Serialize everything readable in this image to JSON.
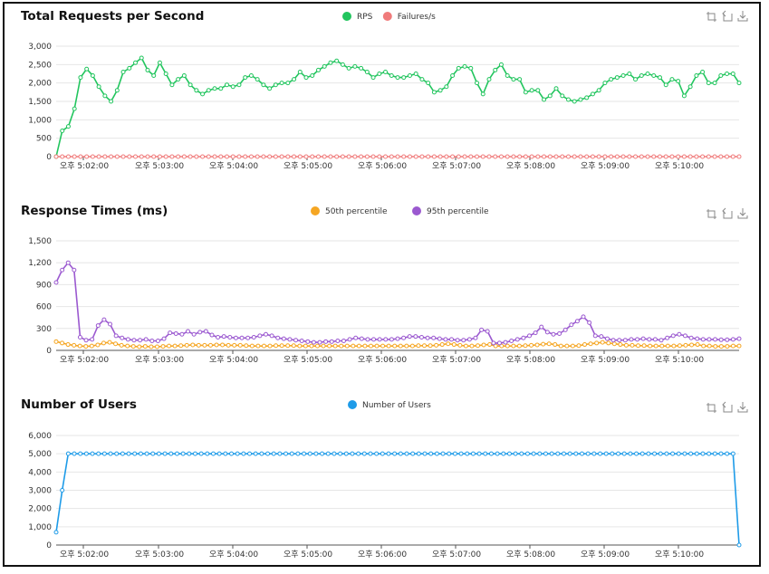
{
  "toolbox": {
    "icons": [
      "zoom-icon",
      "zoom-reset-icon",
      "download-icon"
    ]
  },
  "chart_data": [
    {
      "type": "line",
      "title": "Total Requests per Second",
      "colors": {
        "RPS": "#22c55e",
        "Failures/s": "#f07b7b"
      },
      "ylim": [
        0,
        3000
      ],
      "yticks": [
        "3,000",
        "2,500",
        "2,000",
        "1,500",
        "1,000",
        "500",
        "0"
      ],
      "xticks": [
        "오후 5:02:00",
        "오후 5:03:00",
        "오후 5:04:00",
        "오후 5:05:00",
        "오후 5:06:00",
        "오후 5:07:00",
        "오후 5:08:00",
        "오후 5:09:00",
        "오후 5:10:00"
      ],
      "grid": true,
      "legend_position": "top-center",
      "series": [
        {
          "name": "RPS",
          "values": [
            0,
            700,
            820,
            1300,
            2150,
            2380,
            2200,
            1900,
            1650,
            1500,
            1800,
            2300,
            2400,
            2550,
            2680,
            2350,
            2200,
            2550,
            2250,
            1950,
            2100,
            2200,
            1950,
            1800,
            1700,
            1800,
            1850,
            1850,
            1950,
            1900,
            1950,
            2150,
            2200,
            2100,
            1950,
            1850,
            1950,
            2000,
            2000,
            2100,
            2300,
            2150,
            2200,
            2350,
            2450,
            2550,
            2600,
            2500,
            2400,
            2450,
            2400,
            2300,
            2150,
            2250,
            2300,
            2200,
            2150,
            2150,
            2200,
            2250,
            2100,
            2000,
            1750,
            1800,
            1900,
            2200,
            2400,
            2450,
            2400,
            2000,
            1700,
            2100,
            2350,
            2500,
            2200,
            2100,
            2100,
            1750,
            1800,
            1800,
            1550,
            1650,
            1850,
            1650,
            1550,
            1500,
            1550,
            1600,
            1700,
            1800,
            2000,
            2100,
            2150,
            2200,
            2250,
            2100,
            2200,
            2250,
            2200,
            2150,
            1950,
            2100,
            2050,
            1650,
            1900,
            2200,
            2300,
            2000,
            2000,
            2200,
            2250,
            2250,
            2000
          ]
        },
        {
          "name": "Failures/s",
          "values": [
            0,
            0,
            0,
            0,
            0,
            0,
            0,
            0,
            0,
            0,
            0,
            0,
            0,
            0,
            0,
            0,
            0,
            0,
            0,
            0,
            0,
            0,
            0,
            0,
            0,
            0,
            0,
            0,
            0,
            0,
            0,
            0,
            0,
            0,
            0,
            0,
            0,
            0,
            0,
            0,
            0,
            0,
            0,
            0,
            0,
            0,
            0,
            0,
            0,
            0,
            0,
            0,
            0,
            0,
            0,
            0,
            0,
            0,
            0,
            0,
            0,
            0,
            0,
            0,
            0,
            0,
            0,
            0,
            0,
            0,
            0,
            0,
            0,
            0,
            0,
            0,
            0,
            0,
            0,
            0,
            0,
            0,
            0,
            0,
            0,
            0,
            0,
            0,
            0,
            0,
            0,
            0,
            0,
            0,
            0,
            0,
            0,
            0,
            0,
            0,
            0,
            0,
            0,
            0,
            0,
            0,
            0,
            0,
            0,
            0,
            0,
            0,
            0
          ]
        }
      ]
    },
    {
      "type": "line",
      "title": "Response Times (ms)",
      "colors": {
        "50th percentile": "#f5a623",
        "95th percentile": "#9b59d0"
      },
      "ylim": [
        0,
        1500
      ],
      "yticks": [
        "1,500",
        "1,200",
        "900",
        "600",
        "300",
        "0"
      ],
      "xticks": [
        "오후 5:02:00",
        "오후 5:03:00",
        "오후 5:04:00",
        "오후 5:05:00",
        "오후 5:06:00",
        "오후 5:07:00",
        "오후 5:08:00",
        "오후 5:09:00",
        "오후 5:10:00"
      ],
      "grid": true,
      "legend_position": "top-center",
      "series": [
        {
          "name": "50th percentile",
          "values": [
            120,
            100,
            80,
            70,
            60,
            55,
            60,
            75,
            100,
            110,
            90,
            70,
            60,
            55,
            50,
            55,
            50,
            50,
            55,
            60,
            60,
            65,
            70,
            75,
            70,
            70,
            70,
            75,
            75,
            70,
            70,
            70,
            65,
            60,
            60,
            60,
            60,
            65,
            65,
            65,
            65,
            60,
            60,
            60,
            60,
            60,
            60,
            60,
            60,
            60,
            60,
            60,
            60,
            60,
            60,
            60,
            60,
            60,
            60,
            60,
            60,
            65,
            65,
            65,
            70,
            80,
            90,
            80,
            70,
            60,
            60,
            65,
            75,
            80,
            60,
            60,
            60,
            60,
            60,
            65,
            70,
            75,
            85,
            90,
            80,
            60,
            60,
            60,
            65,
            80,
            90,
            100,
            110,
            100,
            90,
            80,
            70,
            70,
            65,
            65,
            60,
            60,
            60,
            60,
            60,
            65,
            70,
            75,
            80,
            60,
            60,
            55,
            55,
            55,
            60,
            60
          ]
        },
        {
          "name": "95th percentile",
          "values": [
            930,
            1100,
            1200,
            1100,
            180,
            140,
            150,
            340,
            420,
            360,
            200,
            170,
            150,
            140,
            140,
            150,
            130,
            130,
            160,
            240,
            230,
            220,
            260,
            220,
            250,
            260,
            210,
            180,
            190,
            180,
            170,
            170,
            170,
            180,
            200,
            220,
            200,
            170,
            160,
            150,
            140,
            130,
            120,
            110,
            110,
            120,
            120,
            130,
            130,
            150,
            170,
            160,
            150,
            150,
            150,
            150,
            150,
            160,
            170,
            190,
            190,
            180,
            170,
            170,
            160,
            150,
            150,
            140,
            140,
            150,
            170,
            280,
            260,
            100,
            100,
            110,
            130,
            150,
            170,
            200,
            240,
            320,
            250,
            220,
            230,
            280,
            350,
            400,
            460,
            380,
            200,
            190,
            160,
            140,
            140,
            140,
            150,
            150,
            160,
            150,
            150,
            140,
            170,
            200,
            220,
            200,
            170,
            160,
            150,
            150,
            150,
            145,
            145,
            150,
            160
          ]
        }
      ]
    },
    {
      "type": "line",
      "title": "Number of Users",
      "colors": {
        "Number of Users": "#1e9be8"
      },
      "ylim": [
        0,
        6000
      ],
      "yticks": [
        "6,000",
        "5,000",
        "4,000",
        "3,000",
        "2,000",
        "1,000",
        "0"
      ],
      "xticks": [
        "오후 5:02:00",
        "오후 5:03:00",
        "오후 5:04:00",
        "오후 5:05:00",
        "오후 5:06:00",
        "오후 5:07:00",
        "오후 5:08:00",
        "오후 5:09:00",
        "오후 5:10:00"
      ],
      "grid": true,
      "legend_position": "top-center",
      "series": [
        {
          "name": "Number of Users",
          "values": [
            700,
            3000,
            5000,
            5000,
            5000,
            5000,
            5000,
            5000,
            5000,
            5000,
            5000,
            5000,
            5000,
            5000,
            5000,
            5000,
            5000,
            5000,
            5000,
            5000,
            5000,
            5000,
            5000,
            5000,
            5000,
            5000,
            5000,
            5000,
            5000,
            5000,
            5000,
            5000,
            5000,
            5000,
            5000,
            5000,
            5000,
            5000,
            5000,
            5000,
            5000,
            5000,
            5000,
            5000,
            5000,
            5000,
            5000,
            5000,
            5000,
            5000,
            5000,
            5000,
            5000,
            5000,
            5000,
            5000,
            5000,
            5000,
            5000,
            5000,
            5000,
            5000,
            5000,
            5000,
            5000,
            5000,
            5000,
            5000,
            5000,
            5000,
            5000,
            5000,
            5000,
            5000,
            5000,
            5000,
            5000,
            5000,
            5000,
            5000,
            5000,
            5000,
            5000,
            5000,
            5000,
            5000,
            5000,
            5000,
            5000,
            5000,
            5000,
            5000,
            5000,
            5000,
            5000,
            5000,
            5000,
            5000,
            5000,
            5000,
            5000,
            5000,
            5000,
            5000,
            5000,
            5000,
            5000,
            5000,
            5000,
            5000,
            5000,
            5000,
            5000,
            0
          ]
        }
      ]
    }
  ]
}
